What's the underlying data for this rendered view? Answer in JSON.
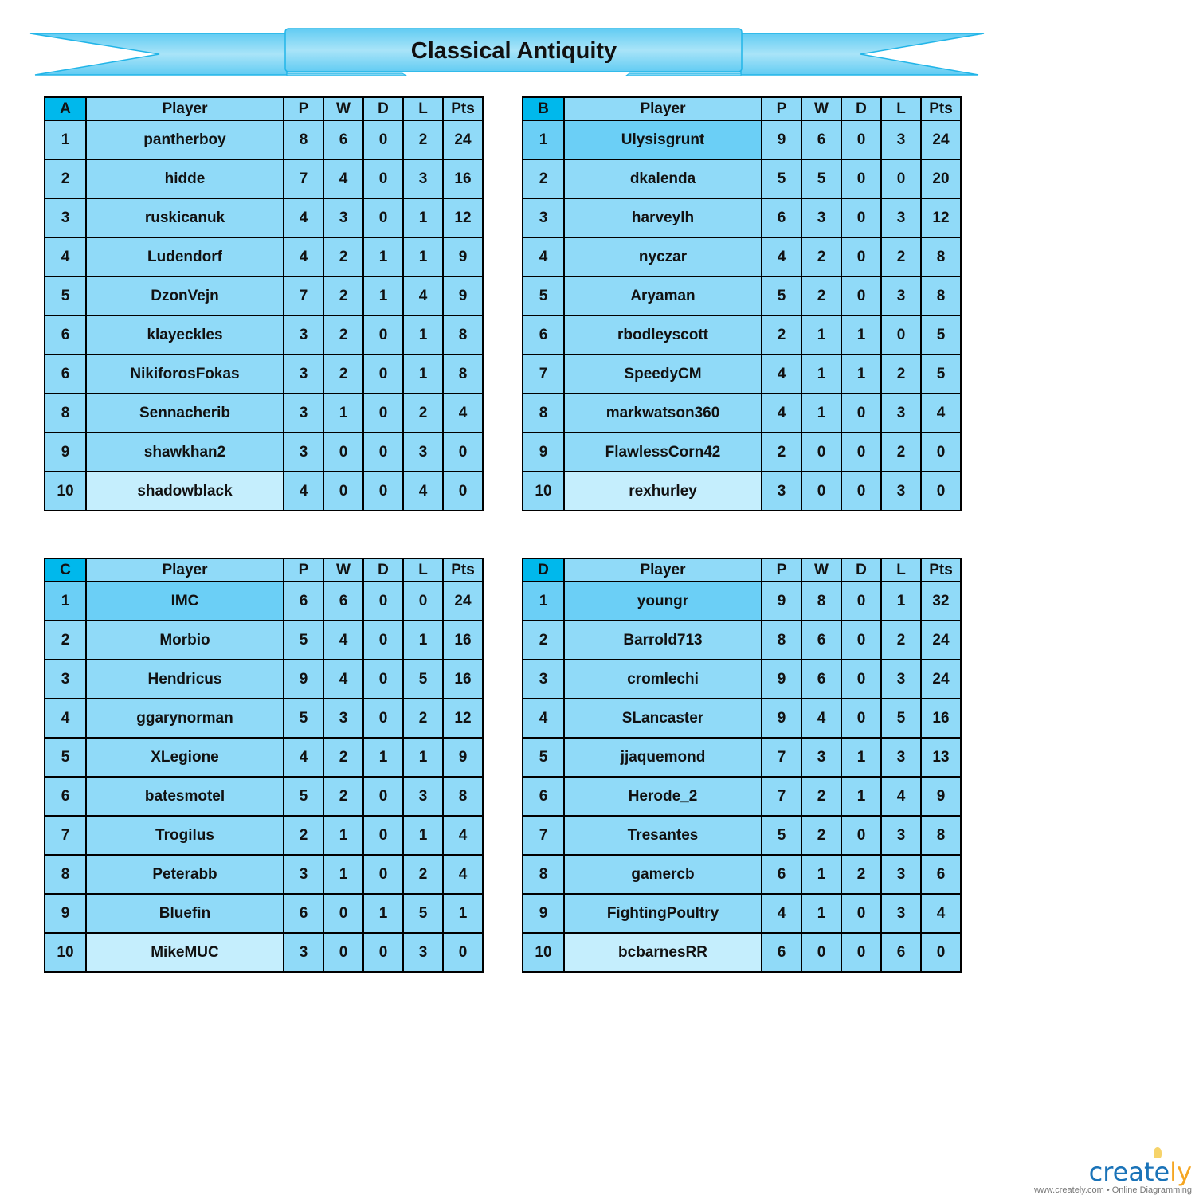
{
  "title": "Classical Antiquity",
  "headers": [
    "Player",
    "P",
    "W",
    "D",
    "L",
    "Pts"
  ],
  "groups": [
    {
      "name": "A",
      "rows": [
        [
          "1",
          "pantherboy",
          "8",
          "6",
          "0",
          "2",
          "24"
        ],
        [
          "2",
          "hidde",
          "7",
          "4",
          "0",
          "3",
          "16"
        ],
        [
          "3",
          "ruskicanuk",
          "4",
          "3",
          "0",
          "1",
          "12"
        ],
        [
          "4",
          "Ludendorf",
          "4",
          "2",
          "1",
          "1",
          "9"
        ],
        [
          "5",
          "DzonVejn",
          "7",
          "2",
          "1",
          "4",
          "9"
        ],
        [
          "6",
          "klayeckles",
          "3",
          "2",
          "0",
          "1",
          "8"
        ],
        [
          "6",
          "NikiforosFokas",
          "3",
          "2",
          "0",
          "1",
          "8"
        ],
        [
          "8",
          "Sennacherib",
          "3",
          "1",
          "0",
          "2",
          "4"
        ],
        [
          "9",
          "shawkhan2",
          "3",
          "0",
          "0",
          "3",
          "0"
        ],
        [
          "10",
          "shadowblack",
          "4",
          "0",
          "0",
          "4",
          "0"
        ]
      ]
    },
    {
      "name": "B",
      "rows": [
        [
          "1",
          "Ulysisgrunt",
          "9",
          "6",
          "0",
          "3",
          "24"
        ],
        [
          "2",
          "dkalenda",
          "5",
          "5",
          "0",
          "0",
          "20"
        ],
        [
          "3",
          "harveylh",
          "6",
          "3",
          "0",
          "3",
          "12"
        ],
        [
          "4",
          "nyczar",
          "4",
          "2",
          "0",
          "2",
          "8"
        ],
        [
          "5",
          "Aryaman",
          "5",
          "2",
          "0",
          "3",
          "8"
        ],
        [
          "6",
          "rbodleyscott",
          "2",
          "1",
          "1",
          "0",
          "5"
        ],
        [
          "7",
          "SpeedyCM",
          "4",
          "1",
          "1",
          "2",
          "5"
        ],
        [
          "8",
          "markwatson360",
          "4",
          "1",
          "0",
          "3",
          "4"
        ],
        [
          "9",
          "FlawlessCorn42",
          "2",
          "0",
          "0",
          "2",
          "0"
        ],
        [
          "10",
          "rexhurley",
          "3",
          "0",
          "0",
          "3",
          "0"
        ]
      ]
    },
    {
      "name": "C",
      "rows": [
        [
          "1",
          "IMC",
          "6",
          "6",
          "0",
          "0",
          "24"
        ],
        [
          "2",
          "Morbio",
          "5",
          "4",
          "0",
          "1",
          "16"
        ],
        [
          "3",
          "Hendricus",
          "9",
          "4",
          "0",
          "5",
          "16"
        ],
        [
          "4",
          "ggarynorman",
          "5",
          "3",
          "0",
          "2",
          "12"
        ],
        [
          "5",
          "XLegione",
          "4",
          "2",
          "1",
          "1",
          "9"
        ],
        [
          "6",
          "batesmotel",
          "5",
          "2",
          "0",
          "3",
          "8"
        ],
        [
          "7",
          "Trogilus",
          "2",
          "1",
          "0",
          "1",
          "4"
        ],
        [
          "8",
          "Peterabb",
          "3",
          "1",
          "0",
          "2",
          "4"
        ],
        [
          "9",
          "Bluefin",
          "6",
          "0",
          "1",
          "5",
          "1"
        ],
        [
          "10",
          "MikeMUC",
          "3",
          "0",
          "0",
          "3",
          "0"
        ]
      ]
    },
    {
      "name": "D",
      "rows": [
        [
          "1",
          "youngr",
          "9",
          "8",
          "0",
          "1",
          "32"
        ],
        [
          "2",
          "Barrold713",
          "8",
          "6",
          "0",
          "2",
          "24"
        ],
        [
          "3",
          "cromlechi",
          "9",
          "6",
          "0",
          "3",
          "24"
        ],
        [
          "4",
          "SLancaster",
          "9",
          "4",
          "0",
          "5",
          "16"
        ],
        [
          "5",
          "jjaquemond",
          "7",
          "3",
          "1",
          "3",
          "13"
        ],
        [
          "6",
          "Herode_2",
          "7",
          "2",
          "1",
          "4",
          "9"
        ],
        [
          "7",
          "Tresantes",
          "5",
          "2",
          "0",
          "3",
          "8"
        ],
        [
          "8",
          "gamercb",
          "6",
          "1",
          "2",
          "3",
          "6"
        ],
        [
          "9",
          "FightingPoultry",
          "4",
          "1",
          "0",
          "3",
          "4"
        ],
        [
          "10",
          "bcbarnesRR",
          "6",
          "0",
          "0",
          "6",
          "0"
        ]
      ]
    }
  ],
  "logo": {
    "brand": "create",
    "brand_tail": "ly",
    "tagline": "www.creately.com • Online Diagramming"
  }
}
